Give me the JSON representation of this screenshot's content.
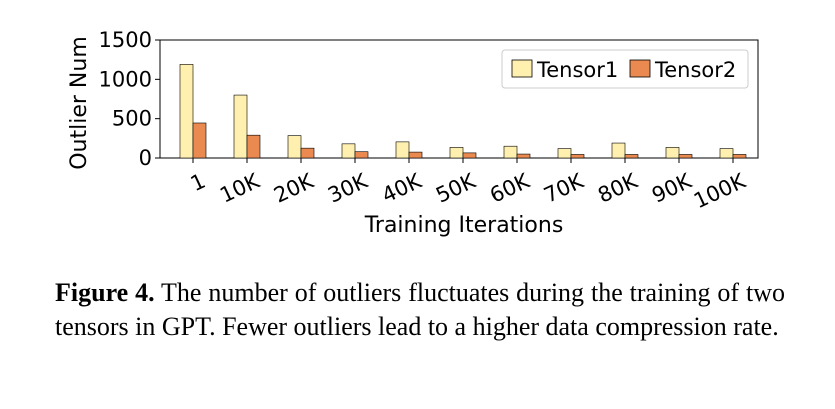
{
  "chart_data": {
    "type": "bar",
    "title": "",
    "xlabel": "Training Iterations",
    "ylabel": "Outlier Num",
    "categories": [
      "1",
      "10K",
      "20K",
      "30K",
      "40K",
      "50K",
      "60K",
      "70K",
      "80K",
      "90K",
      "100K"
    ],
    "series": [
      {
        "name": "Tensor1",
        "color": "#fff0b0",
        "values": [
          1190,
          800,
          285,
          180,
          205,
          135,
          150,
          120,
          190,
          135,
          120
        ]
      },
      {
        "name": "Tensor2",
        "color": "#ea8a50",
        "values": [
          445,
          290,
          125,
          80,
          75,
          65,
          50,
          45,
          45,
          45,
          45
        ]
      }
    ],
    "ylim": [
      0,
      1500
    ],
    "yticks": [
      "0",
      "500",
      "1000",
      "1500"
    ],
    "legend": "top-right",
    "grid": false
  },
  "caption": {
    "label": "Figure 4.",
    "text": "The number of outliers fluctuates during the training of two tensors in GPT. Fewer outliers lead to a higher data compression rate."
  }
}
